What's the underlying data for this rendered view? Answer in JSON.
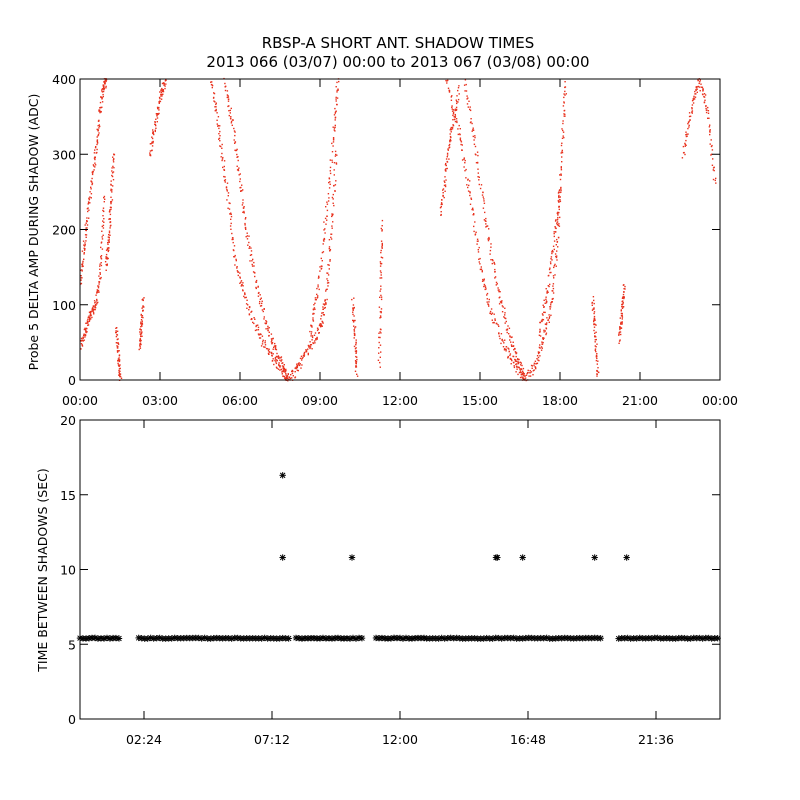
{
  "title_line1": "RBSP-A SHORT ANT. SHADOW TIMES",
  "title_line2": "2013 066 (03/07) 00:00 to 2013 067 (03/08) 00:00",
  "colors": {
    "points_top": "#e8321e",
    "points_bottom": "#000000",
    "axes": "#000000"
  },
  "chart_data": [
    {
      "type": "scatter",
      "ylabel": "Probe 5 DELTA AMP DURING SHADOW (ADC)",
      "xlim": [
        "00:00",
        "24:00"
      ],
      "ylim": [
        0,
        400
      ],
      "x_ticks": [
        "00:00",
        "03:00",
        "06:00",
        "09:00",
        "12:00",
        "15:00",
        "18:00",
        "21:00",
        "00:00"
      ],
      "y_ticks": [
        "0",
        "100",
        "200",
        "300",
        "400"
      ],
      "point_style": "dot",
      "color": "#e8321e",
      "traces": [
        {
          "x_hours": [
            0.0,
            0.2,
            0.4,
            0.6,
            0.75,
            0.9
          ],
          "y": [
            45,
            70,
            88,
            105,
            150,
            250
          ]
        },
        {
          "x_hours": [
            0.0,
            0.15,
            0.35,
            0.55,
            0.7,
            0.85,
            0.95
          ],
          "y": [
            130,
            185,
            245,
            300,
            350,
            390,
            400
          ]
        },
        {
          "x_hours": [
            0.95,
            1.05,
            1.15,
            1.25
          ],
          "y": [
            150,
            190,
            240,
            310
          ]
        },
        {
          "x_hours": [
            1.35,
            1.42,
            1.5
          ],
          "y": [
            70,
            30,
            0
          ]
        },
        {
          "x_hours": [
            2.2,
            2.28,
            2.35
          ],
          "y": [
            45,
            70,
            110
          ]
        },
        {
          "x_hours": [
            2.6,
            2.8,
            3.0,
            3.2
          ],
          "y": [
            300,
            340,
            380,
            400
          ]
        },
        {
          "x_hours": [
            4.9,
            5.2,
            5.5,
            5.8,
            6.2,
            6.7,
            7.2,
            7.6,
            7.8
          ],
          "y": [
            400,
            330,
            250,
            160,
            105,
            60,
            32,
            12,
            0
          ]
        },
        {
          "x_hours": [
            5.4,
            5.7,
            6.0,
            6.3,
            6.7,
            7.1,
            7.5,
            7.8
          ],
          "y": [
            400,
            340,
            260,
            180,
            110,
            60,
            25,
            0
          ]
        },
        {
          "x_hours": [
            7.8,
            8.2,
            8.6,
            9.0,
            9.2,
            9.4,
            9.6
          ],
          "y": [
            0,
            20,
            45,
            70,
            110,
            200,
            310
          ]
        },
        {
          "x_hours": [
            8.6,
            8.9,
            9.2,
            9.5,
            9.65
          ],
          "y": [
            60,
            120,
            220,
            330,
            400
          ]
        },
        {
          "x_hours": [
            10.2,
            10.3,
            10.35
          ],
          "y": [
            105,
            50,
            10
          ]
        },
        {
          "x_hours": [
            11.2,
            11.25,
            11.3
          ],
          "y": [
            20,
            120,
            210
          ]
        },
        {
          "x_hours": [
            13.5,
            13.7,
            13.9,
            14.2
          ],
          "y": [
            220,
            280,
            330,
            390
          ]
        },
        {
          "x_hours": [
            13.7,
            14.2,
            14.6,
            15.0,
            15.4,
            15.9,
            16.3,
            16.7
          ],
          "y": [
            400,
            330,
            250,
            150,
            90,
            45,
            20,
            0
          ]
        },
        {
          "x_hours": [
            14.4,
            14.8,
            15.2,
            15.6,
            16.0,
            16.4,
            16.7
          ],
          "y": [
            400,
            310,
            210,
            130,
            70,
            25,
            0
          ]
        },
        {
          "x_hours": [
            16.7,
            17.1,
            17.4,
            17.7,
            17.9,
            18.05,
            18.2
          ],
          "y": [
            0,
            25,
            60,
            110,
            200,
            310,
            400
          ]
        },
        {
          "x_hours": [
            17.2,
            17.5,
            17.8,
            18.0
          ],
          "y": [
            60,
            120,
            200,
            260
          ]
        },
        {
          "x_hours": [
            19.2,
            19.3,
            19.4
          ],
          "y": [
            110,
            60,
            5
          ]
        },
        {
          "x_hours": [
            20.2,
            20.3,
            20.4
          ],
          "y": [
            55,
            90,
            125
          ]
        },
        {
          "x_hours": [
            22.6,
            22.9,
            23.2,
            23.5,
            23.8
          ],
          "y": [
            300,
            360,
            400,
            360,
            260
          ]
        }
      ]
    },
    {
      "type": "scatter",
      "ylabel": "TIME BETWEEN SHADOWS (SEC)",
      "xlim": [
        "00:00",
        "24:00"
      ],
      "ylim": [
        0,
        20
      ],
      "x_ticks": [
        "02:24",
        "07:12",
        "12:00",
        "16:48",
        "21:36"
      ],
      "y_ticks": [
        "0",
        "5",
        "10",
        "15",
        "20"
      ],
      "point_style": "asterisk",
      "color": "#000000",
      "baseline": {
        "y": 5.4,
        "segments_hours": [
          [
            0.0,
            1.5
          ],
          [
            2.2,
            7.9
          ],
          [
            8.1,
            10.6
          ],
          [
            11.1,
            13.0
          ],
          [
            13.0,
            19.6
          ],
          [
            20.2,
            24.0
          ]
        ]
      },
      "points": [
        {
          "x_hours": 7.6,
          "y": 16.3
        },
        {
          "x_hours": 7.6,
          "y": 10.8
        },
        {
          "x_hours": 10.2,
          "y": 10.8
        },
        {
          "x_hours": 15.6,
          "y": 10.8
        },
        {
          "x_hours": 15.65,
          "y": 10.8
        },
        {
          "x_hours": 16.6,
          "y": 10.8
        },
        {
          "x_hours": 19.3,
          "y": 10.8
        },
        {
          "x_hours": 20.5,
          "y": 10.8
        }
      ]
    }
  ]
}
